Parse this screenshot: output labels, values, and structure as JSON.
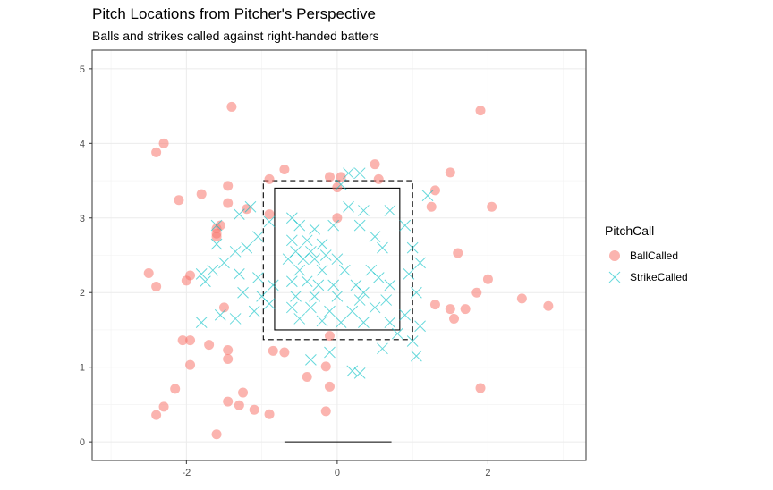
{
  "chart_data": {
    "type": "scatter",
    "title": "Pitch Locations from Pitcher's Perspective",
    "subtitle": "Balls and strikes called against right-handed batters",
    "xlabel": "",
    "ylabel": "",
    "xlim": [
      -3.25,
      3.3
    ],
    "ylim": [
      -0.25,
      5.25
    ],
    "x_ticks": [
      -2,
      0,
      2
    ],
    "x_tick_labels": [
      "-2",
      "0",
      "2"
    ],
    "y_ticks": [
      0,
      1,
      2,
      3,
      4,
      5
    ],
    "y_tick_labels": [
      "0",
      "1",
      "2",
      "3",
      "4",
      "5"
    ],
    "grid": true,
    "legend": {
      "title": "PitchCall",
      "position": "right"
    },
    "strike_zone": {
      "x": [
        -0.83,
        0.83
      ],
      "y": [
        1.5,
        3.4
      ]
    },
    "buffer_zone": {
      "x": [
        -0.98,
        1.0
      ],
      "y": [
        1.37,
        3.5
      ]
    },
    "home_plate": {
      "x": [
        -0.7,
        0.72
      ],
      "y": 0.0
    },
    "series": [
      {
        "name": "BallCalled",
        "marker": "circle",
        "color": "#F8766D",
        "points": [
          [
            -2.4,
            3.88
          ],
          [
            -2.3,
            4.0
          ],
          [
            -1.4,
            4.49
          ],
          [
            -2.1,
            3.24
          ],
          [
            -1.8,
            3.32
          ],
          [
            -1.45,
            3.43
          ],
          [
            -1.45,
            3.2
          ],
          [
            -1.6,
            2.86
          ],
          [
            -1.55,
            2.9
          ],
          [
            -1.6,
            2.79
          ],
          [
            -1.6,
            2.75
          ],
          [
            -1.2,
            3.12
          ],
          [
            -0.9,
            3.52
          ],
          [
            -0.7,
            3.65
          ],
          [
            -0.9,
            3.05
          ],
          [
            -2.5,
            2.26
          ],
          [
            -2.4,
            2.08
          ],
          [
            -2.0,
            2.16
          ],
          [
            -1.95,
            2.23
          ],
          [
            -1.5,
            1.8
          ],
          [
            -2.05,
            1.36
          ],
          [
            -1.95,
            1.36
          ],
          [
            -1.7,
            1.3
          ],
          [
            -1.45,
            1.23
          ],
          [
            -1.45,
            1.11
          ],
          [
            -1.95,
            1.03
          ],
          [
            -0.85,
            1.22
          ],
          [
            -0.7,
            1.2
          ],
          [
            -2.15,
            0.71
          ],
          [
            -2.3,
            0.47
          ],
          [
            -2.4,
            0.36
          ],
          [
            -1.45,
            0.54
          ],
          [
            -1.25,
            0.66
          ],
          [
            -1.3,
            0.49
          ],
          [
            -1.1,
            0.43
          ],
          [
            -0.9,
            0.37
          ],
          [
            -1.6,
            0.1
          ],
          [
            -0.4,
            0.87
          ],
          [
            -0.15,
            1.01
          ],
          [
            -0.1,
            0.74
          ],
          [
            -0.15,
            0.41
          ],
          [
            -0.1,
            1.42
          ],
          [
            -0.1,
            3.55
          ],
          [
            0.05,
            3.55
          ],
          [
            0.0,
            3.41
          ],
          [
            0.0,
            3.0
          ],
          [
            0.5,
            3.72
          ],
          [
            0.55,
            3.52
          ],
          [
            1.3,
            3.37
          ],
          [
            1.25,
            3.15
          ],
          [
            1.5,
            3.61
          ],
          [
            1.6,
            2.53
          ],
          [
            2.05,
            3.15
          ],
          [
            2.0,
            2.18
          ],
          [
            1.85,
            2.0
          ],
          [
            1.5,
            1.78
          ],
          [
            1.55,
            1.65
          ],
          [
            1.7,
            1.78
          ],
          [
            1.3,
            1.84
          ],
          [
            2.45,
            1.92
          ],
          [
            2.8,
            1.82
          ],
          [
            1.9,
            0.72
          ],
          [
            1.9,
            4.44
          ]
        ]
      },
      {
        "name": "StrikeCalled",
        "marker": "x",
        "color": "#00BFC4",
        "points": [
          [
            -0.6,
            3.0
          ],
          [
            -0.5,
            2.9
          ],
          [
            -0.3,
            2.85
          ],
          [
            -0.6,
            2.7
          ],
          [
            -0.4,
            2.7
          ],
          [
            -0.2,
            2.65
          ],
          [
            -0.55,
            2.55
          ],
          [
            -0.35,
            2.55
          ],
          [
            -0.15,
            2.5
          ],
          [
            -0.65,
            2.45
          ],
          [
            -0.3,
            2.45
          ],
          [
            0.0,
            2.45
          ],
          [
            -0.5,
            2.3
          ],
          [
            -0.2,
            2.3
          ],
          [
            0.1,
            2.3
          ],
          [
            -0.6,
            2.15
          ],
          [
            -0.4,
            2.15
          ],
          [
            -0.05,
            2.1
          ],
          [
            0.25,
            2.1
          ],
          [
            -0.55,
            1.95
          ],
          [
            -0.3,
            1.95
          ],
          [
            0.0,
            1.95
          ],
          [
            0.3,
            1.9
          ],
          [
            -0.6,
            1.8
          ],
          [
            -0.35,
            1.8
          ],
          [
            -0.1,
            1.75
          ],
          [
            0.2,
            1.75
          ],
          [
            -0.5,
            1.65
          ],
          [
            -0.2,
            1.62
          ],
          [
            0.05,
            1.6
          ],
          [
            0.35,
            1.6
          ],
          [
            0.15,
            3.15
          ],
          [
            0.35,
            3.1
          ],
          [
            0.3,
            2.9
          ],
          [
            0.5,
            2.75
          ],
          [
            0.6,
            2.6
          ],
          [
            0.45,
            2.3
          ],
          [
            0.55,
            2.2
          ],
          [
            0.7,
            2.1
          ],
          [
            0.65,
            1.9
          ],
          [
            0.5,
            1.8
          ],
          [
            0.7,
            1.6
          ],
          [
            0.05,
            3.45
          ],
          [
            0.15,
            3.6
          ],
          [
            0.3,
            3.6
          ],
          [
            -0.05,
            2.9
          ],
          [
            0.7,
            3.1
          ],
          [
            -0.9,
            2.95
          ],
          [
            -1.05,
            2.75
          ],
          [
            -1.2,
            2.6
          ],
          [
            -1.35,
            2.55
          ],
          [
            -1.5,
            2.4
          ],
          [
            -1.65,
            2.3
          ],
          [
            -1.8,
            2.25
          ],
          [
            -1.3,
            2.25
          ],
          [
            -1.05,
            2.2
          ],
          [
            -0.85,
            2.1
          ],
          [
            -1.25,
            2.0
          ],
          [
            -1.0,
            1.95
          ],
          [
            -0.9,
            1.85
          ],
          [
            -1.1,
            1.75
          ],
          [
            -1.35,
            1.65
          ],
          [
            -1.55,
            1.7
          ],
          [
            -1.8,
            1.6
          ],
          [
            -1.75,
            2.15
          ],
          [
            -1.6,
            2.9
          ],
          [
            -1.6,
            2.65
          ],
          [
            -1.3,
            3.05
          ],
          [
            -1.15,
            3.15
          ],
          [
            0.9,
            2.9
          ],
          [
            1.0,
            2.6
          ],
          [
            0.95,
            2.25
          ],
          [
            1.05,
            2.0
          ],
          [
            0.9,
            1.7
          ],
          [
            1.1,
            1.55
          ],
          [
            1.0,
            1.35
          ],
          [
            0.8,
            1.45
          ],
          [
            0.6,
            1.25
          ],
          [
            0.3,
            0.92
          ],
          [
            0.2,
            0.95
          ],
          [
            -0.1,
            1.2
          ],
          [
            -0.35,
            1.1
          ],
          [
            1.05,
            1.15
          ],
          [
            1.1,
            2.4
          ],
          [
            1.2,
            3.3
          ],
          [
            0.35,
            2.0
          ],
          [
            -0.25,
            2.1
          ],
          [
            -0.45,
            2.45
          ]
        ]
      }
    ]
  }
}
